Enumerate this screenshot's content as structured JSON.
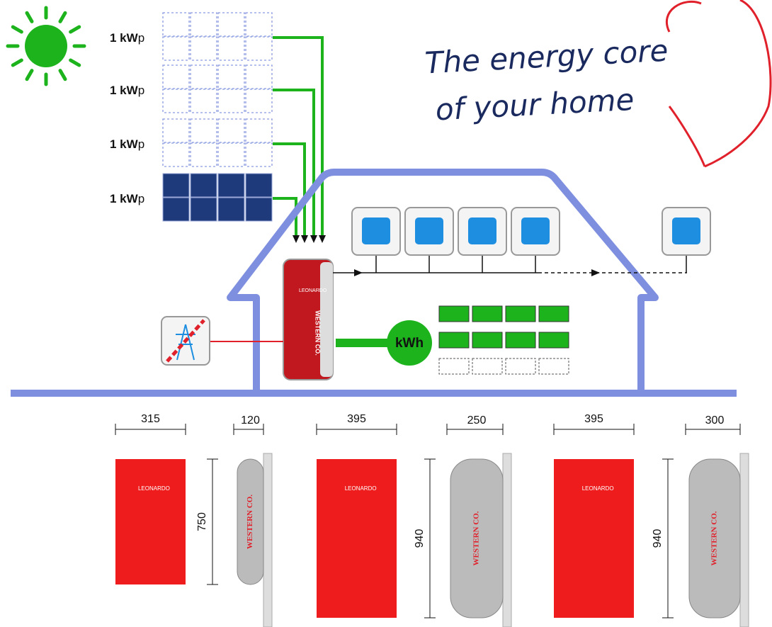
{
  "panels": [
    {
      "label": "1 kW",
      "unit": "p"
    },
    {
      "label": "1 kW",
      "unit": "p"
    },
    {
      "label": "1 kW",
      "unit": "p"
    },
    {
      "label": "1 kW",
      "unit": "p"
    }
  ],
  "title": [
    "The energy core",
    "of your home"
  ],
  "storage_label": "kWh",
  "inverter": {
    "brand": "LEONARDO",
    "maker": "WESTERN CO."
  },
  "devices": [
    {
      "width": 315,
      "depth": 120,
      "height": 750,
      "brand": "LEONARDO",
      "maker": "WESTERN CO."
    },
    {
      "width": 395,
      "depth": 250,
      "height": 940,
      "brand": "LEONARDO",
      "maker": "WESTERN CO."
    },
    {
      "width": 395,
      "depth": 300,
      "height": 940,
      "brand": "LEONARDO",
      "maker": "WESTERN CO."
    }
  ]
}
